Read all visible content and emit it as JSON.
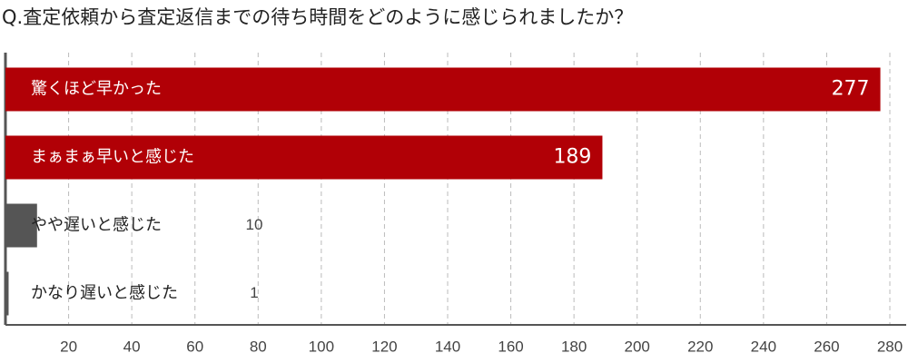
{
  "chart_data": {
    "type": "barh",
    "title": "Q.査定依頼から査定返信までの待ち時間をどのように感じられましたか？",
    "categories": [
      "驚くほど早かった",
      "まぁまぁ早いと感じた",
      "やや遅いと感じた",
      "かなり遅いと感じた"
    ],
    "values": [
      277,
      189,
      10,
      1
    ],
    "colors": [
      "#b10006",
      "#b10006",
      "#555555",
      "#555555"
    ],
    "xlim": [
      0,
      280
    ],
    "xticks": [
      20,
      40,
      60,
      80,
      100,
      120,
      140,
      160,
      180,
      200,
      220,
      240,
      260,
      280
    ],
    "grid": true
  }
}
